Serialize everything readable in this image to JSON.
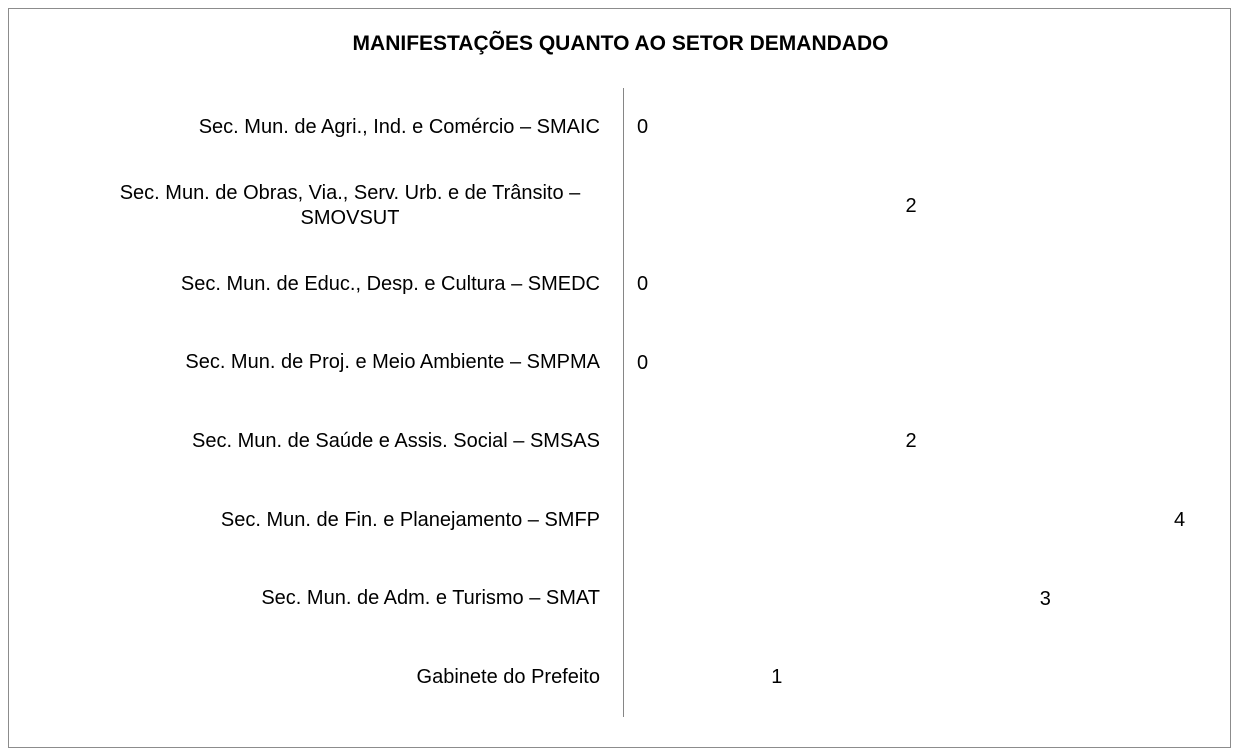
{
  "chart_data": {
    "type": "bar",
    "orientation": "horizontal",
    "title": "MANIFESTAÇÕES QUANTO AO SETOR DEMANDADO",
    "categories": [
      "Sec. Mun. de Agri., Ind. e Comércio – SMAIC",
      "Sec. Mun. de Obras, Via., Serv. Urb. e de Trânsito – SMOVSUT",
      "Sec. Mun. de Educ., Desp. e Cultura – SMEDC",
      "Sec. Mun. de Proj. e Meio Ambiente – SMPMA",
      "Sec. Mun. de Saúde e Assis. Social – SMSAS",
      "Sec. Mun. de Fin. e Planejamento – SMFP",
      "Sec. Mun. de Adm. e Turismo – SMAT",
      "Gabinete do Prefeito"
    ],
    "values": [
      0,
      2,
      0,
      0,
      2,
      4,
      3,
      1
    ],
    "color": "#4f81bd",
    "xlim": [
      0,
      4
    ]
  }
}
